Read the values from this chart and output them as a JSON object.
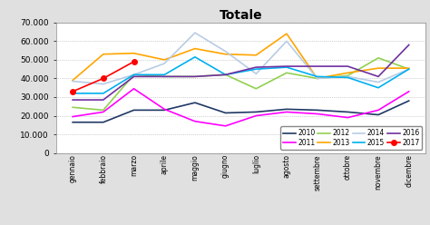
{
  "title": "Totale",
  "months": [
    "gennaio",
    "febbraio",
    "marzo",
    "aprile",
    "maggio",
    "giugno",
    "luglio",
    "agosto",
    "settembre",
    "ottobre",
    "novembre",
    "dicembre"
  ],
  "series": {
    "2010": [
      16500,
      16500,
      23000,
      23000,
      27000,
      21500,
      22000,
      23500,
      23000,
      22000,
      20500,
      28000
    ],
    "2011": [
      19500,
      22000,
      34500,
      23500,
      17000,
      14500,
      20000,
      22000,
      21000,
      19000,
      23000,
      33000
    ],
    "2012": [
      24500,
      23000,
      42000,
      41000,
      41000,
      42000,
      34500,
      43000,
      40000,
      41500,
      51000,
      45000
    ],
    "2013": [
      39000,
      53000,
      53500,
      50000,
      56000,
      53000,
      52500,
      64000,
      40000,
      43000,
      45500,
      45500
    ],
    "2014": [
      38500,
      37000,
      42000,
      48000,
      64500,
      54500,
      42500,
      60000,
      40000,
      41000,
      38000,
      45000
    ],
    "2015": [
      32000,
      32000,
      42000,
      42000,
      51500,
      42000,
      45000,
      46000,
      41000,
      40500,
      35000,
      45000
    ],
    "2016": [
      28500,
      28500,
      41000,
      41000,
      41000,
      42000,
      46000,
      46500,
      46500,
      46500,
      41000,
      58000
    ],
    "2017": [
      33000,
      40000,
      49000,
      null,
      null,
      null,
      null,
      null,
      null,
      null,
      null,
      null
    ]
  },
  "colors": {
    "2010": "#1F3864",
    "2011": "#FF00FF",
    "2012": "#92D050",
    "2013": "#FFA500",
    "2014": "#B8CCE4",
    "2015": "#00B0F0",
    "2016": "#7030A0",
    "2017": "#FF0000"
  },
  "ylim": [
    0,
    70000
  ],
  "yticks": [
    0,
    10000,
    20000,
    30000,
    40000,
    50000,
    60000,
    70000
  ],
  "fig_facecolor": "#E0E0E0",
  "plot_facecolor": "#FFFFFF",
  "grid_color": "#AAAAAA",
  "legend_order": [
    "2010",
    "2011",
    "2012",
    "2013",
    "2014",
    "2015",
    "2016",
    "2017"
  ]
}
